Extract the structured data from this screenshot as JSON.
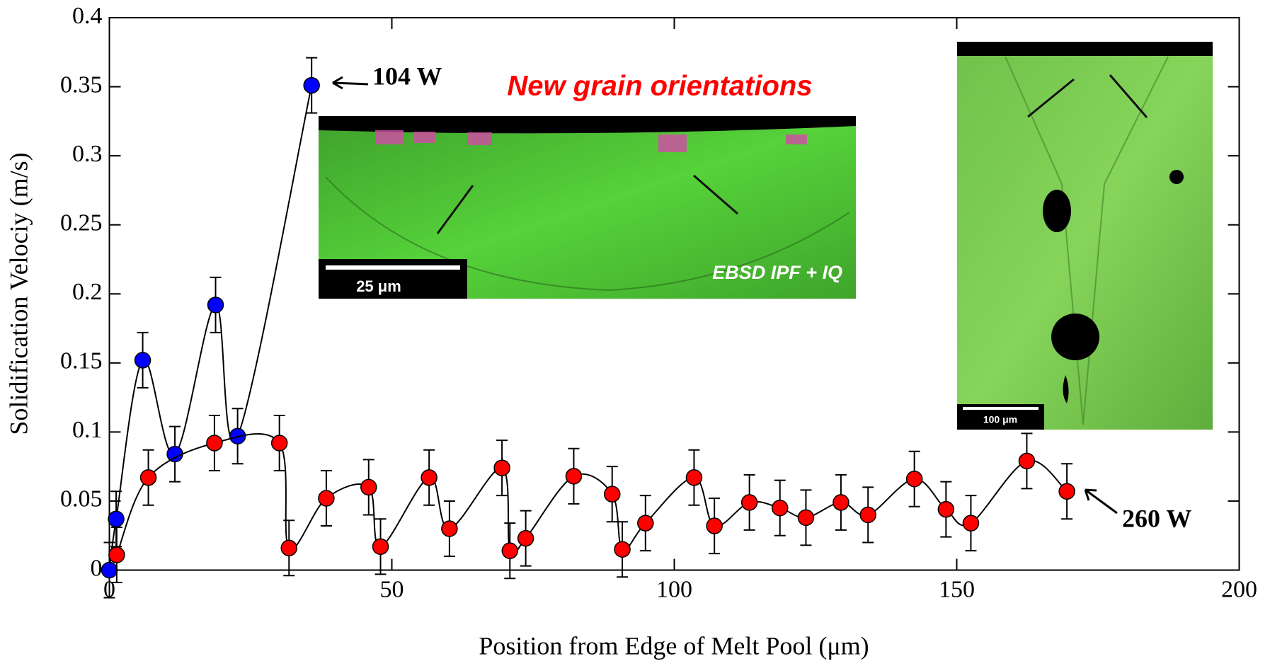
{
  "chart_data": {
    "type": "scatter",
    "xlabel": "Position from Edge of Melt Pool (μm)",
    "ylabel": "Solidification Velociy (m/s)",
    "xlim": [
      0,
      200
    ],
    "ylim": [
      0,
      0.4
    ],
    "xticks": [
      0,
      50,
      100,
      150,
      200
    ],
    "yticks": [
      0,
      0.05,
      0.1,
      0.15,
      0.2,
      0.25,
      0.3,
      0.35,
      0.4
    ],
    "annotation": "New grain orientations",
    "insets": [
      {
        "caption": "EBSD IPF + IQ",
        "scale_bar": "25 μm"
      },
      {
        "scale_bar": "100 μm"
      }
    ],
    "series": [
      {
        "name": "104 W",
        "color": "#0000ff",
        "x": [
          0,
          1.2,
          5.9,
          11.6,
          18.8,
          22.7,
          35.8
        ],
        "values": [
          0,
          0.037,
          0.152,
          0.084,
          0.192,
          0.097,
          0.351
        ],
        "errors": [
          0.02,
          0.02,
          0.02,
          0.02,
          0.02,
          0.02,
          0.02
        ]
      },
      {
        "name": "260 W",
        "color": "#ff0000",
        "x": [
          1.3,
          6.9,
          18.6,
          30.1,
          31.8,
          38.4,
          45.9,
          48.0,
          56.6,
          60.2,
          69.5,
          70.9,
          73.7,
          82.2,
          89.0,
          90.8,
          94.9,
          103.5,
          107.1,
          113.3,
          118.7,
          123.3,
          129.5,
          134.3,
          142.5,
          148.1,
          152.5,
          162.4,
          169.5
        ],
        "values": [
          0.011,
          0.067,
          0.092,
          0.092,
          0.016,
          0.052,
          0.06,
          0.017,
          0.067,
          0.03,
          0.074,
          0.014,
          0.023,
          0.068,
          0.055,
          0.015,
          0.034,
          0.067,
          0.032,
          0.049,
          0.045,
          0.038,
          0.049,
          0.04,
          0.066,
          0.044,
          0.034,
          0.079,
          0.057
        ],
        "errors": [
          0.02,
          0.02,
          0.02,
          0.02,
          0.02,
          0.02,
          0.02,
          0.02,
          0.02,
          0.02,
          0.02,
          0.02,
          0.02,
          0.02,
          0.02,
          0.02,
          0.02,
          0.02,
          0.02,
          0.02,
          0.02,
          0.02,
          0.02,
          0.02,
          0.02,
          0.02,
          0.02,
          0.02,
          0.02
        ]
      }
    ]
  }
}
